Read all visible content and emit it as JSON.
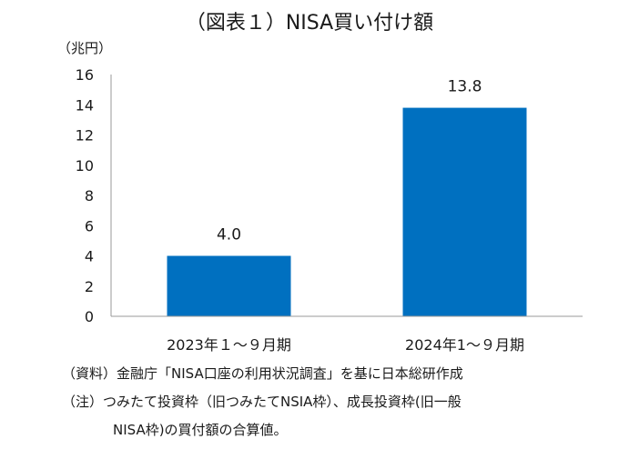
{
  "chart_data": {
    "type": "bar",
    "title": "（図表１）NISA買い付け額",
    "unit_label": "（兆円）",
    "categories": [
      "2023年１～９月期",
      "2024年1～９月期"
    ],
    "values": [
      4.0,
      13.8
    ],
    "data_labels": [
      "4.0",
      "13.8"
    ],
    "ylim": [
      0,
      16
    ],
    "yticks": [
      0,
      2,
      4,
      6,
      8,
      10,
      12,
      14,
      16
    ],
    "grid": false,
    "legend": "none",
    "bar_color": "#0070c0"
  },
  "notes": [
    "（資料）金融庁「NISA口座の利用状況調査」を基に日本総研作成",
    "（注）つみたて投資枠（旧つみたてNSIA枠）、成長投資枠(旧一般",
    "NISA枠)の買付額の合算値。"
  ]
}
